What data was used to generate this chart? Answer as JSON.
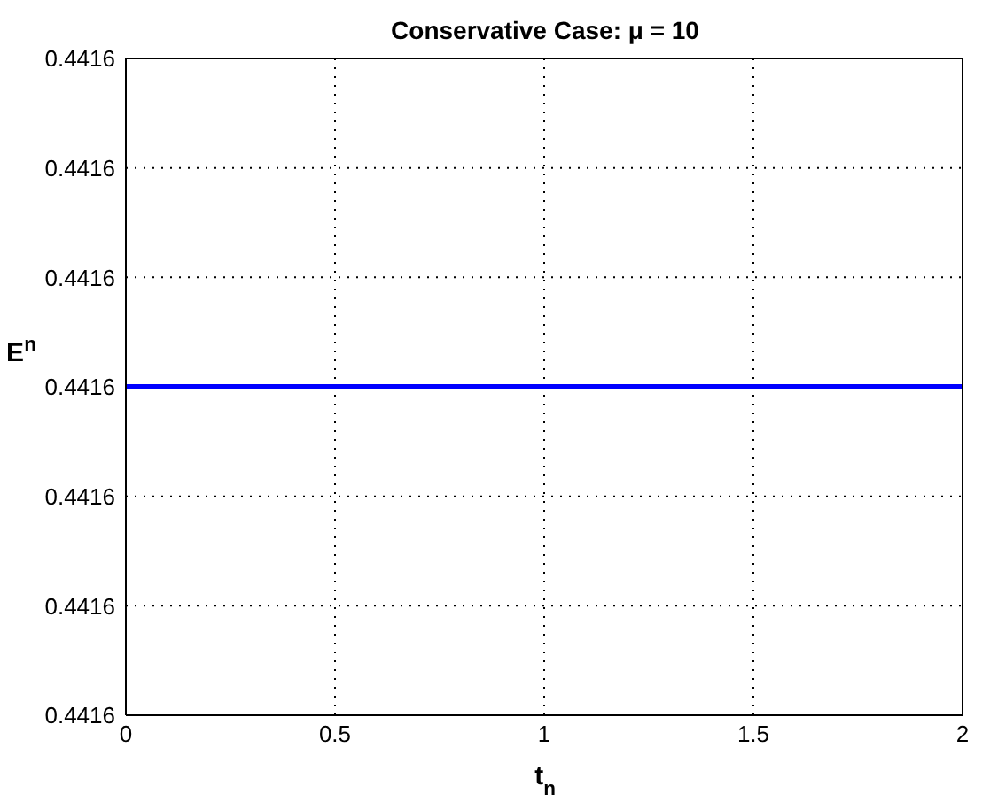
{
  "chart_data": {
    "type": "line",
    "title": "Conservative Case: μ = 10",
    "xlabel": "t$_{n}$",
    "ylabel": "E$^{n}$",
    "x": [
      0,
      2
    ],
    "series": [
      {
        "color": "#0000ff",
        "values": [
          0.4416,
          0.4416
        ]
      }
    ],
    "xlim": [
      0,
      2
    ],
    "xticks": [
      0,
      0.5,
      1,
      1.5,
      2
    ],
    "ylim": [
      0.44157,
      0.44163
    ],
    "yticks": [
      {
        "value": 0.44157,
        "label": "0.4416"
      },
      {
        "value": 0.44158,
        "label": "0.4416"
      },
      {
        "value": 0.44159,
        "label": "0.4416"
      },
      {
        "value": 0.4416,
        "label": "0.4416"
      },
      {
        "value": 0.44161,
        "label": "0.4416"
      },
      {
        "value": 0.44162,
        "label": "0.4416"
      },
      {
        "value": 0.44163,
        "label": "0.4416"
      }
    ],
    "grid": true,
    "marker": "none",
    "line_style": "solid",
    "legend": false
  }
}
